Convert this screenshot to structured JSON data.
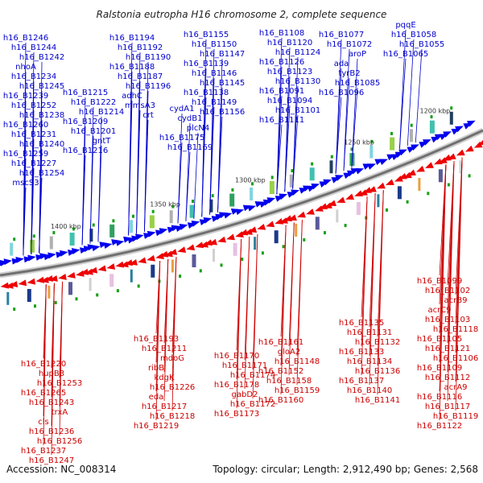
{
  "map": {
    "title": "Ralstonia eutropha H16 chromosome 2, complete sequence",
    "accession": "Accession: NC_008314",
    "topology": "Topology: circular; Length: 2,912,490 bp; Genes: 2,568",
    "scale_labels": [
      "1200 kbp",
      "1250 kbp",
      "1300 kbp",
      "1350 kbp",
      "1400 kbp"
    ],
    "colors": {
      "forward": "#0000ee",
      "reverse": "#ee0000",
      "backbone": "#808080",
      "label_forward": "#0000cc",
      "label_reverse": "#cc0000"
    },
    "upper_labels": [
      "h16_B1246",
      "h16_B1244",
      "h16_B1242",
      "nhoA",
      "h16_B1234",
      "h16_B1245",
      "h16_B1239",
      "h16_B1252",
      "h16_B1238",
      "h16_B1260",
      "h16_B1231",
      "h16_B1240",
      "h16_B1259",
      "h16_B1227",
      "h16_B1254",
      "mscS3",
      "h16_B1215",
      "h16_B1222",
      "h16_B1214",
      "h16_B1209",
      "h16_B1201",
      "gntT",
      "h16_B1216",
      "h16_B1194",
      "h16_B1192",
      "h16_B1190",
      "h16_B1188",
      "h16_B1187",
      "h16_B1196",
      "adhC",
      "mmsA3",
      "crt",
      "cydA1",
      "cydB1",
      "plcN4",
      "h16_B1175",
      "h16_B1169",
      "h16_B1155",
      "h16_B1150",
      "h16_B1147",
      "h16_B1139",
      "h16_B1146",
      "h16_B1145",
      "h16_B1138",
      "h16_B1149",
      "h16_B1156",
      "h16_B1108",
      "h16_B1120",
      "h16_B1124",
      "h16_B1126",
      "h16_B1123",
      "h16_B1130",
      "h16_B1091",
      "h16_B1094",
      "h16_B1101",
      "h16_B1111",
      "h16_B1077",
      "h16_B1072",
      "aroP",
      "ada",
      "tyrB2",
      "h16_B1085",
      "h16_B1096",
      "pqqE",
      "h16_B1058",
      "h16_B1055",
      "h16_B1065"
    ],
    "lower_labels": [
      "h16_B1099",
      "h16_B1102",
      "acrB9",
      "acrC9",
      "h16_B1103",
      "h16_B1118",
      "h16_B1105",
      "h16_B1121",
      "h16_B1106",
      "h16_B1109",
      "h16_B1112",
      "acrA9",
      "h16_B1116",
      "h16_B1117",
      "h16_B1119",
      "h16_B1122",
      "h16_B1135",
      "h16_B1131",
      "h16_B1132",
      "h16_B1133",
      "h16_B1134",
      "h16_B1136",
      "h16_B1137",
      "h16_B1140",
      "h16_B1141",
      "h16_B1161",
      "gloA2",
      "h16_B1148",
      "h16_B1152",
      "h16_B1158",
      "h16_B1159",
      "h16_B1160",
      "h16_B1170",
      "h16_B1171",
      "h16_B1174",
      "h16_B1178",
      "gabD2",
      "h16_B1172",
      "h16_B1173",
      "h16_B1193",
      "h16_B1211",
      "mdoG",
      "ribB",
      "kdgK",
      "h16_B1226",
      "eda",
      "h16_B1217",
      "h16_B1218",
      "h16_B1219",
      "h16_B1220",
      "hupB3",
      "h16_B1253",
      "h16_B1265",
      "h16_B1243",
      "trxA",
      "cls",
      "h16_B1236",
      "h16_B1256",
      "h16_B1237",
      "h16_B1247",
      "h16_B1268"
    ]
  }
}
